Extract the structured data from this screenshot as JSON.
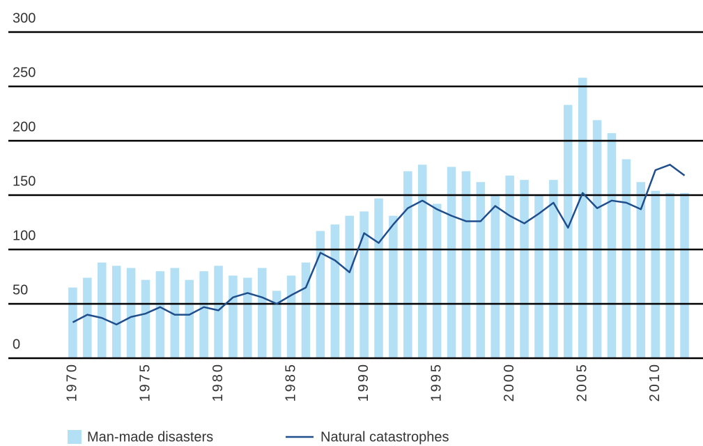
{
  "chart_data": {
    "type": "bar",
    "categories": [
      "1970",
      null,
      null,
      null,
      null,
      "1975",
      null,
      null,
      null,
      null,
      "1980",
      null,
      null,
      null,
      null,
      "1985",
      null,
      null,
      null,
      null,
      "1990",
      null,
      null,
      null,
      null,
      "1995",
      null,
      null,
      null,
      null,
      "2000",
      null,
      null,
      null,
      null,
      "2005",
      null,
      null,
      null,
      null,
      "2010",
      null,
      null
    ],
    "series": [
      {
        "name": "Man-made disasters",
        "type": "bar",
        "color": "#b3e0f5",
        "values": [
          65,
          74,
          88,
          85,
          83,
          72,
          80,
          83,
          72,
          80,
          85,
          76,
          74,
          83,
          62,
          76,
          88,
          117,
          123,
          131,
          135,
          147,
          131,
          172,
          178,
          142,
          176,
          172,
          162,
          150,
          168,
          164,
          150,
          164,
          233,
          258,
          219,
          207,
          183,
          162,
          154,
          152,
          152
        ]
      },
      {
        "name": "Natural catastrophes",
        "type": "line",
        "color": "#1f4e8c",
        "values": [
          33,
          40,
          37,
          31,
          38,
          41,
          47,
          40,
          40,
          47,
          44,
          56,
          60,
          56,
          50,
          58,
          65,
          97,
          90,
          79,
          115,
          106,
          123,
          138,
          145,
          137,
          131,
          126,
          126,
          140,
          131,
          124,
          133,
          143,
          120,
          152,
          138,
          145,
          143,
          137,
          173,
          178,
          168
        ]
      }
    ],
    "ylim": [
      0,
      300
    ],
    "yticks": [
      0,
      50,
      100,
      150,
      200,
      250,
      300
    ],
    "grid": true
  }
}
